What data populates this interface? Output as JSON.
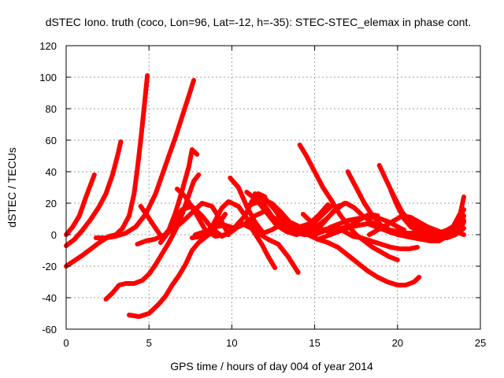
{
  "chart_data": {
    "type": "scatter",
    "title": "dSTEC Iono. truth (coco, Lon=96, Lat=-12, h=-35): STEC-STEC_elemax in phase cont.",
    "xlabel": "GPS time / hours of day 004 of year 2014",
    "ylabel": "dSTEC  / TECUs",
    "xlim": [
      0,
      25
    ],
    "ylim": [
      -60,
      120
    ],
    "xticks": [
      0,
      5,
      10,
      15,
      20,
      25
    ],
    "yticks": [
      -60,
      -40,
      -20,
      0,
      20,
      40,
      60,
      80,
      100,
      120
    ],
    "xtick_labels": [
      "0",
      "5",
      "10",
      "15",
      "20",
      "25"
    ],
    "ytick_labels": [
      "-60",
      "-40",
      "-20",
      "0",
      "20",
      "40",
      "60",
      "80",
      "100",
      "120"
    ],
    "grid": true,
    "series_color": "#ff0000",
    "series": [
      {
        "x": [
          0,
          0.4,
          0.8,
          1.2,
          1.7
        ],
        "y": [
          0,
          5,
          12,
          24,
          38
        ]
      },
      {
        "x": [
          0,
          0.5,
          1.0,
          1.5,
          2.0,
          2.4,
          2.8,
          3.1,
          3.3
        ],
        "y": [
          -7,
          -3,
          3,
          10,
          18,
          26,
          38,
          50,
          59
        ]
      },
      {
        "x": [
          0,
          1.0,
          2.0,
          2.6,
          3.0,
          3.4,
          3.8,
          4.1,
          4.3,
          4.5,
          4.7,
          4.9
        ],
        "y": [
          -20,
          -13,
          -5,
          -1,
          0,
          4,
          12,
          26,
          42,
          60,
          80,
          101
        ]
      },
      {
        "x": [
          1.8,
          2.4,
          3.0,
          3.6,
          4.2,
          4.8,
          5.4,
          5.8,
          6.2,
          6.6,
          7.0,
          7.4,
          7.7
        ],
        "y": [
          -2,
          -2,
          -1,
          1,
          5,
          13,
          26,
          38,
          50,
          62,
          75,
          88,
          98
        ]
      },
      {
        "x": [
          2.4,
          2.8,
          3.2,
          3.6,
          4.1,
          4.6,
          5.0,
          5.4,
          5.8,
          6.2,
          6.6,
          7.0,
          7.4,
          7.7,
          8.0
        ],
        "y": [
          -41,
          -37,
          -32,
          -31,
          -31,
          -29,
          -25,
          -19,
          -12,
          -5,
          3,
          13,
          25,
          34,
          38
        ]
      },
      {
        "x": [
          3.8,
          4.4,
          5.0,
          5.6,
          6.0,
          6.4,
          6.8,
          7.2,
          7.6,
          8.0,
          8.6,
          9.2,
          9.6
        ],
        "y": [
          -51,
          -52,
          -50,
          -44,
          -39,
          -32,
          -26,
          -19,
          -10,
          -5,
          0,
          7,
          13
        ]
      },
      {
        "x": [
          4.3,
          4.8,
          5.3,
          5.8,
          6.4,
          7.0,
          7.6,
          8.2,
          8.8,
          9.4,
          9.8
        ],
        "y": [
          -6,
          -4,
          -3,
          -1,
          3,
          8,
          14,
          20,
          18,
          8,
          0
        ]
      },
      {
        "x": [
          4.5,
          4.9,
          5.4,
          5.8,
          6.2,
          6.6,
          7.0,
          7.4,
          7.6,
          7.9
        ],
        "y": [
          18,
          12,
          4,
          -2,
          3,
          14,
          28,
          43,
          54,
          51
        ]
      },
      {
        "x": [
          5.7,
          6.2,
          6.6,
          7.0,
          7.6,
          8.2,
          8.8,
          9.4,
          10.0,
          10.6,
          11.2,
          11.8,
          12.2,
          12.6
        ],
        "y": [
          -5,
          2,
          10,
          16,
          18,
          12,
          4,
          -1,
          2,
          7,
          4,
          -6,
          -14,
          -21
        ]
      },
      {
        "x": [
          6.7,
          7.2,
          7.8,
          8.4,
          9.0,
          9.6,
          10.2,
          10.8,
          11.2,
          11.6,
          12.0
        ],
        "y": [
          29,
          24,
          14,
          3,
          -1,
          0,
          5,
          12,
          21,
          26,
          24
        ]
      },
      {
        "x": [
          7.6,
          8.2,
          8.8,
          9.4,
          9.8,
          10.4,
          11.0,
          11.6,
          12.2,
          12.8,
          13.4,
          14.0
        ],
        "y": [
          -2,
          -1,
          5,
          17,
          21,
          18,
          9,
          1,
          -3,
          -6,
          -14,
          -24
        ]
      },
      {
        "x": [
          7.8,
          8.4,
          9.0,
          9.6,
          10.2,
          10.8,
          11.4,
          12.0,
          12.6,
          13.2,
          13.8,
          14.4,
          15.0
        ],
        "y": [
          0,
          2,
          5,
          6,
          4,
          7,
          12,
          15,
          10,
          5,
          2,
          0,
          0
        ]
      },
      {
        "x": [
          9.9,
          10.4,
          10.9,
          11.4,
          11.9,
          12.4,
          12.9,
          13.4,
          13.9,
          14.4
        ],
        "y": [
          36,
          30,
          18,
          8,
          1,
          3,
          6,
          4,
          1,
          0
        ]
      },
      {
        "x": [
          10.9,
          11.4,
          11.9,
          12.4,
          12.9,
          13.5,
          14.1,
          14.7,
          15.3,
          15.8
        ],
        "y": [
          18,
          20,
          22,
          20,
          15,
          8,
          5,
          7,
          13,
          19
        ]
      },
      {
        "x": [
          10.9,
          11.5,
          12.1,
          12.7,
          13.3,
          13.9,
          14.5,
          15.1,
          15.7,
          16.3,
          16.8
        ],
        "y": [
          27,
          22,
          14,
          6,
          2,
          0,
          2,
          5,
          10,
          16,
          20
        ]
      },
      {
        "x": [
          11.4,
          11.9,
          12.4,
          12.9,
          13.4,
          13.9,
          14.4,
          14.9,
          15.4,
          16.0
        ],
        "y": [
          26,
          20,
          12,
          7,
          4,
          3,
          4,
          7,
          12,
          18
        ]
      },
      {
        "x": [
          12.0,
          12.5,
          13.0,
          13.5,
          14.0,
          14.5,
          15.0
        ],
        "y": [
          23,
          17,
          10,
          5,
          3,
          2,
          2
        ]
      },
      {
        "x": [
          12.8,
          13.3,
          13.8,
          14.3,
          14.8,
          15.4,
          16.0,
          16.6,
          17.2,
          17.8,
          18.3,
          18.8
        ],
        "y": [
          12,
          8,
          4,
          2,
          1,
          3,
          4,
          4,
          6,
          10,
          13,
          12
        ]
      },
      {
        "x": [
          13.5,
          14.0,
          14.6,
          15.2,
          15.8,
          16.4,
          17.0,
          17.6,
          18.2,
          18.8,
          19.4,
          20.0,
          20.5,
          21.0,
          21.3
        ],
        "y": [
          5,
          3,
          0,
          -3,
          -5,
          -8,
          -13,
          -18,
          -23,
          -27,
          -30,
          -32,
          -32,
          -30,
          -27
        ]
      },
      {
        "x": [
          14.1,
          14.5,
          15.0,
          15.5,
          16.0,
          16.5,
          17.0,
          17.5,
          18.0,
          18.5,
          19.0,
          19.5,
          20.0
        ],
        "y": [
          57,
          50,
          40,
          30,
          22,
          13,
          6,
          0,
          -4,
          -8,
          -11,
          -14,
          -16
        ]
      },
      {
        "x": [
          14.3,
          14.8,
          15.3,
          15.8,
          16.3,
          16.8,
          17.3,
          17.8,
          18.4,
          19.0,
          19.6,
          20.2,
          20.7,
          21.2
        ],
        "y": [
          13,
          8,
          4,
          2,
          5,
          2,
          -1,
          -2,
          -4,
          -6,
          -8,
          -9,
          -9,
          -8
        ]
      },
      {
        "x": [
          14.9,
          15.4,
          15.9,
          16.4,
          16.9,
          17.4,
          17.9,
          18.4,
          18.9,
          19.4
        ],
        "y": [
          2,
          6,
          12,
          18,
          20,
          17,
          12,
          8,
          5,
          4
        ]
      },
      {
        "x": [
          15.0,
          15.5,
          16.0,
          16.5,
          17.0,
          17.5,
          18.0,
          18.5,
          19.0,
          19.5,
          20.0,
          20.4
        ],
        "y": [
          0,
          2,
          5,
          7,
          9,
          10,
          11,
          11,
          10,
          8,
          5,
          3
        ]
      },
      {
        "x": [
          15.2,
          15.7,
          16.2,
          16.7,
          17.2,
          17.7,
          18.2,
          18.7,
          19.2,
          19.7,
          20.2,
          20.8
        ],
        "y": [
          -3,
          -1,
          1,
          3,
          5,
          6,
          7,
          5,
          3,
          1,
          0,
          1
        ]
      },
      {
        "x": [
          17.0,
          17.5,
          18.0,
          18.5,
          19.0,
          19.5,
          20.0,
          20.5,
          21.0,
          21.5,
          22.0,
          22.5,
          23.0,
          23.5,
          24.0
        ],
        "y": [
          40,
          30,
          20,
          12,
          6,
          3,
          2,
          1,
          1,
          0,
          0,
          1,
          3,
          6,
          9
        ]
      },
      {
        "x": [
          18.3,
          18.8,
          19.3,
          19.8,
          20.3,
          20.8,
          21.3,
          21.8,
          22.3,
          22.8,
          23.3
        ],
        "y": [
          0,
          3,
          6,
          9,
          12,
          11,
          8,
          5,
          3,
          1,
          0
        ]
      },
      {
        "x": [
          18.9,
          19.3,
          19.8,
          20.3,
          20.8,
          21.3,
          21.8,
          22.3,
          22.8,
          23.3,
          23.8
        ],
        "y": [
          44,
          35,
          24,
          14,
          8,
          5,
          3,
          1,
          0,
          2,
          6
        ]
      },
      {
        "x": [
          19.6,
          20.0,
          20.4,
          20.8,
          21.3,
          21.8,
          22.3,
          22.8,
          23.3,
          23.8,
          24.0
        ],
        "y": [
          28,
          18,
          10,
          5,
          2,
          0,
          -1,
          -2,
          0,
          4,
          8
        ]
      },
      {
        "x": [
          20.0,
          20.5,
          21.0,
          21.5,
          22.0,
          22.5,
          23.0,
          23.5,
          24.0
        ],
        "y": [
          0,
          -1,
          -2,
          -3,
          -3,
          -2,
          0,
          6,
          16
        ]
      },
      {
        "x": [
          20.5,
          21.0,
          21.5,
          22.0,
          22.5,
          23.0,
          23.4,
          23.8,
          24.0
        ],
        "y": [
          -1,
          -2,
          -3,
          -4,
          -4,
          -1,
          6,
          14,
          24
        ]
      },
      {
        "x": [
          21.5,
          22.0,
          22.5,
          23.0,
          23.5,
          24.0
        ],
        "y": [
          2,
          0,
          -2,
          -2,
          0,
          4
        ]
      },
      {
        "x": [
          22.0,
          22.5,
          23.0,
          23.5,
          24.0
        ],
        "y": [
          -1,
          -2,
          -1,
          2,
          0
        ]
      },
      {
        "x": [
          21.8,
          22.3,
          22.8,
          23.3,
          23.8,
          24.0
        ],
        "y": [
          5,
          2,
          -1,
          0,
          6,
          12
        ]
      }
    ]
  }
}
